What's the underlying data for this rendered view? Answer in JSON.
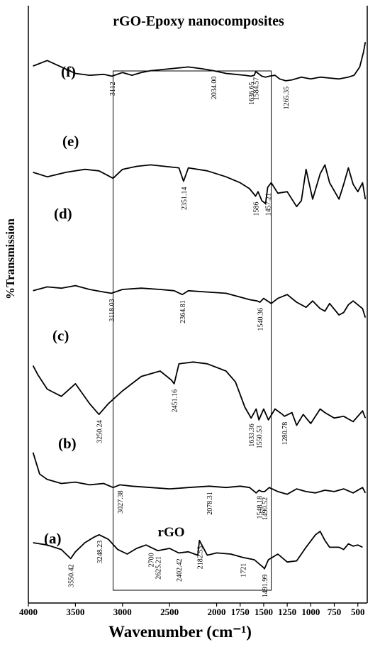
{
  "chart_data": {
    "type": "line",
    "title": "rGO-Epoxy nanocomposites",
    "xlabel": "Wavenumber (cm⁻¹)",
    "ylabel": "%Transmission",
    "xlim": [
      4000,
      400
    ],
    "x_reversed": true,
    "xticks": [
      4000,
      3500,
      3000,
      2500,
      2000,
      1750,
      1500,
      1250,
      1000,
      750,
      500
    ],
    "xtick_labels": [
      "4000",
      "3500",
      "3000",
      "2500",
      "2000",
      "1750",
      "1500",
      "1250",
      "1000",
      "750",
      "500"
    ],
    "highlight_box": {
      "x": [
        3100,
        1420
      ]
    },
    "inline_label": {
      "text": "rGO",
      "series": "(a)",
      "x": 2550
    },
    "series": [
      {
        "name": "(f)",
        "x": [
          3950,
          3800,
          3650,
          3500,
          3350,
          3200,
          3112,
          3000,
          2900,
          2800,
          2700,
          2500,
          2300,
          2150,
          2034,
          1900,
          1800,
          1700,
          1636.65,
          1600,
          1584.57,
          1520,
          1480,
          1440,
          1380,
          1330,
          1265.35,
          1200,
          1100,
          1000,
          900,
          800,
          700,
          600,
          540,
          480,
          440,
          420
        ],
        "y": [
          73,
          79,
          72,
          65,
          63,
          64,
          62,
          66,
          63,
          66,
          68,
          70,
          72,
          70,
          68,
          65,
          64,
          63,
          62,
          63,
          67,
          62,
          61,
          62,
          63,
          59,
          57,
          58,
          61,
          59,
          61,
          60,
          59,
          61,
          63,
          72,
          88,
          99
        ]
      },
      {
        "name": "(e)",
        "x": [
          3950,
          3800,
          3600,
          3400,
          3250,
          3100,
          3000,
          2850,
          2700,
          2550,
          2400,
          2351.14,
          2300,
          2100,
          1900,
          1750,
          1650,
          1586,
          1560,
          1520,
          1480,
          1457.21,
          1420,
          1350,
          1250,
          1150,
          1100,
          1050,
          980,
          900,
          850,
          800,
          700,
          650,
          600,
          550,
          500,
          450,
          420
        ],
        "y": [
          51,
          48,
          51,
          53,
          52,
          47,
          53,
          55,
          56,
          55,
          54,
          45,
          54,
          52,
          48,
          44,
          40,
          35,
          38,
          32,
          30,
          41,
          44,
          37,
          38,
          28,
          32,
          53,
          33,
          50,
          56,
          44,
          33,
          43,
          54,
          43,
          38,
          44,
          33
        ]
      },
      {
        "name": "(d)",
        "x": [
          3950,
          3800,
          3650,
          3500,
          3350,
          3200,
          3118.03,
          3000,
          2800,
          2600,
          2450,
          2364.81,
          2300,
          2100,
          1900,
          1750,
          1650,
          1570,
          1540.36,
          1500,
          1420,
          1350,
          1250,
          1150,
          1050,
          980,
          900,
          850,
          800,
          700,
          650,
          600,
          550,
          500,
          450,
          420
        ],
        "y": [
          29,
          32,
          31,
          33,
          30,
          28,
          27,
          30,
          31,
          30,
          29,
          26,
          29,
          28,
          27,
          24,
          22,
          21,
          20,
          23,
          19,
          23,
          26,
          20,
          16,
          21,
          15,
          13,
          19,
          10,
          12,
          18,
          21,
          18,
          15,
          8
        ]
      },
      {
        "name": "(c)",
        "x": [
          3950,
          3900,
          3800,
          3650,
          3500,
          3350,
          3250.24,
          3150,
          3000,
          2800,
          2600,
          2480,
          2451.16,
          2400,
          2250,
          2100,
          1900,
          1800,
          1700,
          1633.36,
          1580,
          1550.53,
          1500,
          1450,
          1380,
          1300,
          1280.78,
          1200,
          1150,
          1080,
          1000,
          900,
          850,
          750,
          650,
          550,
          450,
          420
        ],
        "y": [
          43,
          38,
          30,
          26,
          33,
          22,
          16,
          22,
          29,
          37,
          40,
          35,
          33,
          44,
          45,
          44,
          40,
          34,
          20,
          14,
          19,
          13,
          19,
          13,
          19,
          16,
          15,
          17,
          10,
          16,
          11,
          19,
          17,
          14,
          15,
          12,
          18,
          14
        ]
      },
      {
        "name": "(b)",
        "x": [
          3950,
          3880,
          3800,
          3650,
          3500,
          3350,
          3200,
          3100,
          3027.38,
          2900,
          2700,
          2500,
          2300,
          2078.31,
          1900,
          1750,
          1650,
          1580,
          1548.18,
          1520,
          1490.52,
          1440,
          1350,
          1250,
          1150,
          1050,
          950,
          850,
          750,
          650,
          550,
          450,
          420
        ],
        "y": [
          38,
          22,
          18,
          15,
          16,
          14,
          15,
          12,
          14,
          13,
          12,
          11,
          12,
          13,
          12,
          13,
          12,
          8,
          10,
          9,
          9,
          12,
          9,
          7,
          11,
          9,
          8,
          10,
          9,
          11,
          8,
          12,
          8
        ]
      },
      {
        "name": "(a)",
        "x": [
          3950,
          3800,
          3650,
          3600,
          3550.42,
          3500,
          3400,
          3300,
          3248.23,
          3150,
          3050,
          2950,
          2850,
          2750,
          2700,
          2625.21,
          2500,
          2402.42,
          2300,
          2200,
          2182.53,
          2100,
          2000,
          1850,
          1721,
          1600,
          1500,
          1491.99,
          1450,
          1350,
          1250,
          1150,
          1050,
          950,
          900,
          850,
          800,
          700,
          650,
          600,
          550,
          500,
          450
        ],
        "y": [
          50,
          48,
          44,
          40,
          36,
          42,
          50,
          55,
          57,
          53,
          44,
          40,
          45,
          48,
          46,
          43,
          45,
          41,
          42,
          39,
          52,
          39,
          41,
          40,
          37,
          35,
          28,
          27,
          35,
          40,
          33,
          34,
          46,
          57,
          60,
          52,
          46,
          46,
          44,
          49,
          47,
          48,
          46
        ]
      }
    ],
    "peak_labels": [
      {
        "series": "(f)",
        "x": 3112,
        "text": "3112"
      },
      {
        "series": "(f)",
        "x": 2034,
        "text": "2034.00"
      },
      {
        "series": "(f)",
        "x": 1636.65,
        "text": "1636.65"
      },
      {
        "series": "(f)",
        "x": 1584.57,
        "text": "1584.57"
      },
      {
        "series": "(f)",
        "x": 1265.35,
        "text": "1265.35"
      },
      {
        "series": "(e)",
        "x": 2351.14,
        "text": "2351.14"
      },
      {
        "series": "(e)",
        "x": 1586,
        "text": "1586"
      },
      {
        "series": "(e)",
        "x": 1457.21,
        "text": "1457.21"
      },
      {
        "series": "(d)",
        "x": 3118.03,
        "text": "3118.03"
      },
      {
        "series": "(d)",
        "x": 2364.81,
        "text": "2364.81"
      },
      {
        "series": "(d)",
        "x": 1540.36,
        "text": "1540.36"
      },
      {
        "series": "(c)",
        "x": 3250.24,
        "text": "3250.24"
      },
      {
        "series": "(c)",
        "x": 2451.16,
        "text": "2451.16"
      },
      {
        "series": "(c)",
        "x": 1633.36,
        "text": "1633.36"
      },
      {
        "series": "(c)",
        "x": 1550.53,
        "text": "1550.53"
      },
      {
        "series": "(c)",
        "x": 1280.78,
        "text": "1280.78"
      },
      {
        "series": "(b)",
        "x": 3027.38,
        "text": "3027.38"
      },
      {
        "series": "(b)",
        "x": 2078.31,
        "text": "2078.31"
      },
      {
        "series": "(b)",
        "x": 1548.18,
        "text": "1548.18"
      },
      {
        "series": "(b)",
        "x": 1490.52,
        "text": "1490.52"
      },
      {
        "series": "(a)",
        "x": 3550.42,
        "text": "3550.42"
      },
      {
        "series": "(a)",
        "x": 3248.23,
        "text": "3248.23"
      },
      {
        "series": "(a)",
        "x": 2700,
        "text": "2700"
      },
      {
        "series": "(a)",
        "x": 2625.21,
        "text": "2625.21"
      },
      {
        "series": "(a)",
        "x": 2402.42,
        "text": "2402.42"
      },
      {
        "series": "(a)",
        "x": 2182.53,
        "text": "2182.53"
      },
      {
        "series": "(a)",
        "x": 1721,
        "text": "1721"
      },
      {
        "series": "(a)",
        "x": 1491.99,
        "text": "1491.99"
      }
    ]
  }
}
